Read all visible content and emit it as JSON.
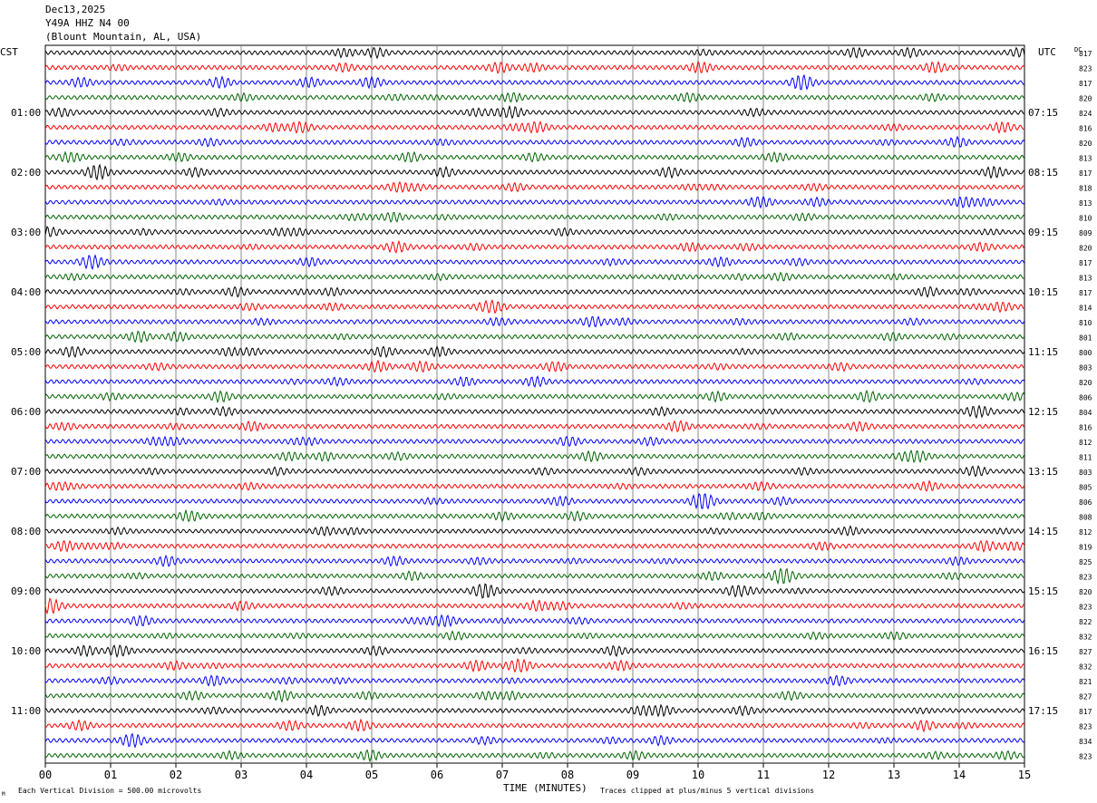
{
  "header": {
    "date": "Dec13,2025",
    "station": "Y49A HHZ N4 00",
    "location": "(Blount Mountain, AL, USA)"
  },
  "chart_data": {
    "type": "line",
    "subtype": "helicorder",
    "left_zone": "CST",
    "right_zone": "UTC",
    "dc_header": "DC",
    "left_hour_labels": [
      "01:00",
      "02:00",
      "03:00",
      "04:00",
      "05:00",
      "06:00",
      "07:00",
      "08:00",
      "09:00",
      "10:00",
      "11:00"
    ],
    "right_hour_labels": [
      "07:15",
      "08:15",
      "09:15",
      "10:15",
      "11:15",
      "12:15",
      "13:15",
      "14:15",
      "15:15",
      "16:15",
      "17:15"
    ],
    "traces_per_hour": 4,
    "trace_count": 48,
    "trace_colors": [
      "#000000",
      "#ff0000",
      "#0000ff",
      "#006400"
    ],
    "dc_offsets": [
      817,
      823,
      817,
      820,
      824,
      816,
      820,
      813,
      817,
      818,
      813,
      810,
      809,
      820,
      817,
      813,
      817,
      814,
      810,
      801,
      800,
      803,
      820,
      806,
      804,
      816,
      812,
      811,
      803,
      805,
      806,
      808,
      812,
      819,
      825,
      823,
      820,
      823,
      822,
      832,
      827,
      832,
      821,
      827,
      817,
      823,
      834,
      823
    ],
    "x_ticks": [
      "00",
      "01",
      "02",
      "03",
      "04",
      "05",
      "06",
      "07",
      "08",
      "09",
      "10",
      "11",
      "12",
      "13",
      "14",
      "15"
    ],
    "xlim": [
      0,
      15
    ],
    "xlabel": "TIME (MINUTES)",
    "scale_note": "Each Vertical Division =  500.00 microvolts",
    "clip_note": "Traces clipped at plus/minus 5 vertical divisions",
    "corner_mark": "M"
  }
}
